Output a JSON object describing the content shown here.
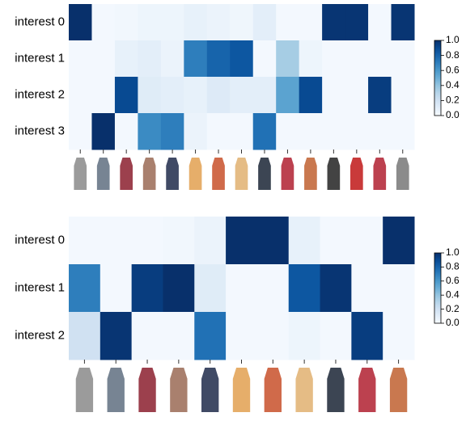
{
  "chart_data": [
    {
      "type": "heatmap",
      "cmap": "Blues",
      "rows": [
        "interest 0",
        "interest 1",
        "interest 2",
        "interest 3"
      ],
      "values": [
        [
          1.0,
          0.02,
          0.03,
          0.05,
          0.05,
          0.08,
          0.06,
          0.04,
          0.1,
          0.02,
          0.02,
          0.98,
          0.98,
          0.02,
          0.98
        ],
        [
          0.02,
          0.02,
          0.08,
          0.1,
          0.06,
          0.7,
          0.8,
          0.85,
          0.02,
          0.35,
          0.05,
          0.02,
          0.02,
          0.02,
          0.02
        ],
        [
          0.02,
          0.02,
          0.9,
          0.12,
          0.1,
          0.08,
          0.13,
          0.1,
          0.1,
          0.55,
          0.9,
          0.02,
          0.02,
          0.95,
          0.02
        ],
        [
          0.02,
          1.0,
          0.02,
          0.65,
          0.7,
          0.06,
          0.02,
          0.02,
          0.75,
          0.02,
          0.02,
          0.02,
          0.02,
          0.02,
          0.02
        ]
      ],
      "clim": [
        0,
        1
      ],
      "cticks": [
        {
          "value": 0,
          "label": "0.0"
        },
        0.2,
        0.4,
        0.6,
        0.8,
        {
          "value": 1,
          "label": "1.0"
        }
      ]
    },
    {
      "type": "heatmap",
      "cmap": "Blues",
      "rows": [
        "interest 0",
        "interest 1",
        "interest 2"
      ],
      "values": [
        [
          0.02,
          0.02,
          0.02,
          0.03,
          0.06,
          1.0,
          1.0,
          0.08,
          0.02,
          0.02,
          1.0
        ],
        [
          0.7,
          0.02,
          0.95,
          1.0,
          0.12,
          0.02,
          0.02,
          0.85,
          0.98,
          0.02,
          0.02
        ],
        [
          0.2,
          0.98,
          0.02,
          0.02,
          0.75,
          0.02,
          0.02,
          0.05,
          0.02,
          0.95,
          0.02
        ]
      ],
      "clim": [
        0,
        1
      ],
      "cticks": [
        {
          "value": 0,
          "label": "0.0"
        },
        0.2,
        0.4,
        0.6,
        0.8,
        {
          "value": 1,
          "label": "1.0"
        }
      ]
    }
  ]
}
